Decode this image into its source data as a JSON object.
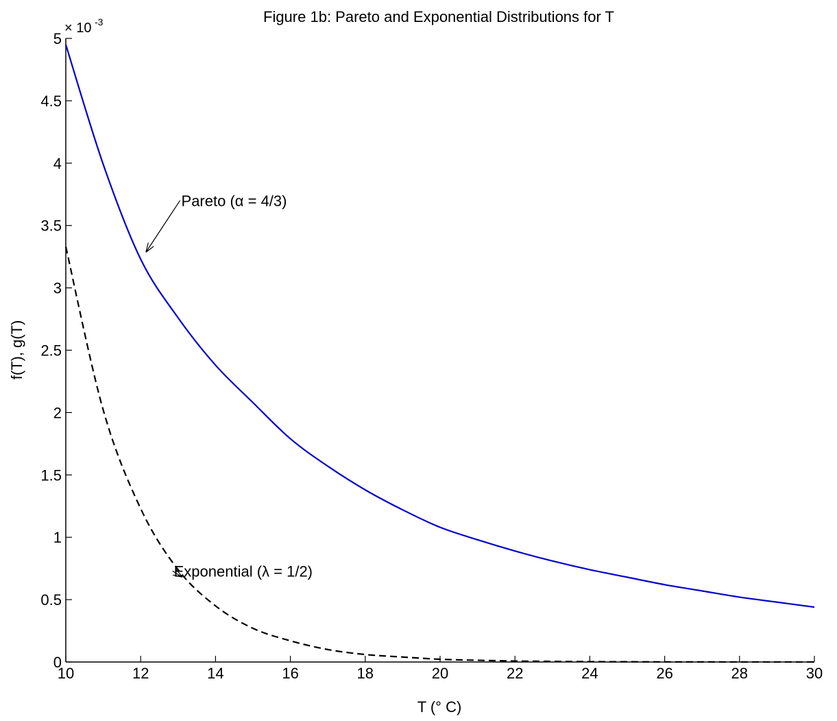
{
  "chart_data": {
    "type": "line",
    "title": "Figure 1b: Pareto and Exponential Distributions for T",
    "xlabel": "T (° C)",
    "ylabel": "f(T), g(T)",
    "xlim": [
      10,
      30
    ],
    "ylim": [
      0,
      0.005
    ],
    "xticks": [
      10,
      12,
      14,
      16,
      18,
      20,
      22,
      24,
      26,
      28,
      30
    ],
    "yticks": [
      0,
      0.0005,
      0.001,
      0.0015,
      0.002,
      0.0025,
      0.003,
      0.0035,
      0.004,
      0.0045,
      0.005
    ],
    "ytick_labels": [
      "0",
      "0.5",
      "1",
      "1.5",
      "2",
      "2.5",
      "3",
      "3.5",
      "4",
      "4.5",
      "5"
    ],
    "y_multiplier_base": "× 10",
    "y_multiplier_exp": "-3",
    "grid": false,
    "series": [
      {
        "key": "pareto",
        "color": "#0000cc",
        "style": "solid",
        "x": [
          10,
          11,
          12,
          13,
          14,
          15,
          16,
          17,
          18,
          19,
          20,
          21,
          22,
          23,
          24,
          25,
          26,
          27,
          28,
          29,
          30
        ],
        "y": [
          0.00495,
          0.00399,
          0.00323,
          0.00276,
          0.00238,
          0.00208,
          0.00179,
          0.00157,
          0.00138,
          0.00122,
          0.00108,
          0.00098,
          0.00089,
          0.00081,
          0.00074,
          0.00068,
          0.00062,
          0.00057,
          0.00052,
          0.00048,
          0.00044
        ]
      },
      {
        "key": "exponential",
        "color": "#000000",
        "style": "dashed",
        "x": [
          10,
          11,
          12,
          13,
          14,
          15,
          16,
          17,
          18,
          19,
          20,
          21,
          22,
          23,
          24,
          25,
          26,
          27,
          28,
          29,
          30
        ],
        "y": [
          0.00333,
          0.00202,
          0.00123,
          0.00074,
          0.00045,
          0.00027,
          0.00017,
          0.0001,
          6e-05,
          4e-05,
          2.2e-05,
          1.4e-05,
          8e-06,
          5e-06,
          3e-06,
          2e-06,
          1e-06,
          7e-07,
          4e-07,
          3e-07,
          2e-07
        ]
      }
    ],
    "annotations": [
      {
        "key": "pareto",
        "text": "Pareto (α = 4/3)",
        "text_x": 13.05,
        "text_y": 0.0037,
        "arrow_x": 12.15,
        "arrow_y": 0.00329
      },
      {
        "key": "exponential",
        "text": "Exponential (λ = 1/2)",
        "text_x": 12.85,
        "text_y": 0.00073,
        "arrow_x": 13.1,
        "arrow_y": 0.000683
      }
    ]
  }
}
